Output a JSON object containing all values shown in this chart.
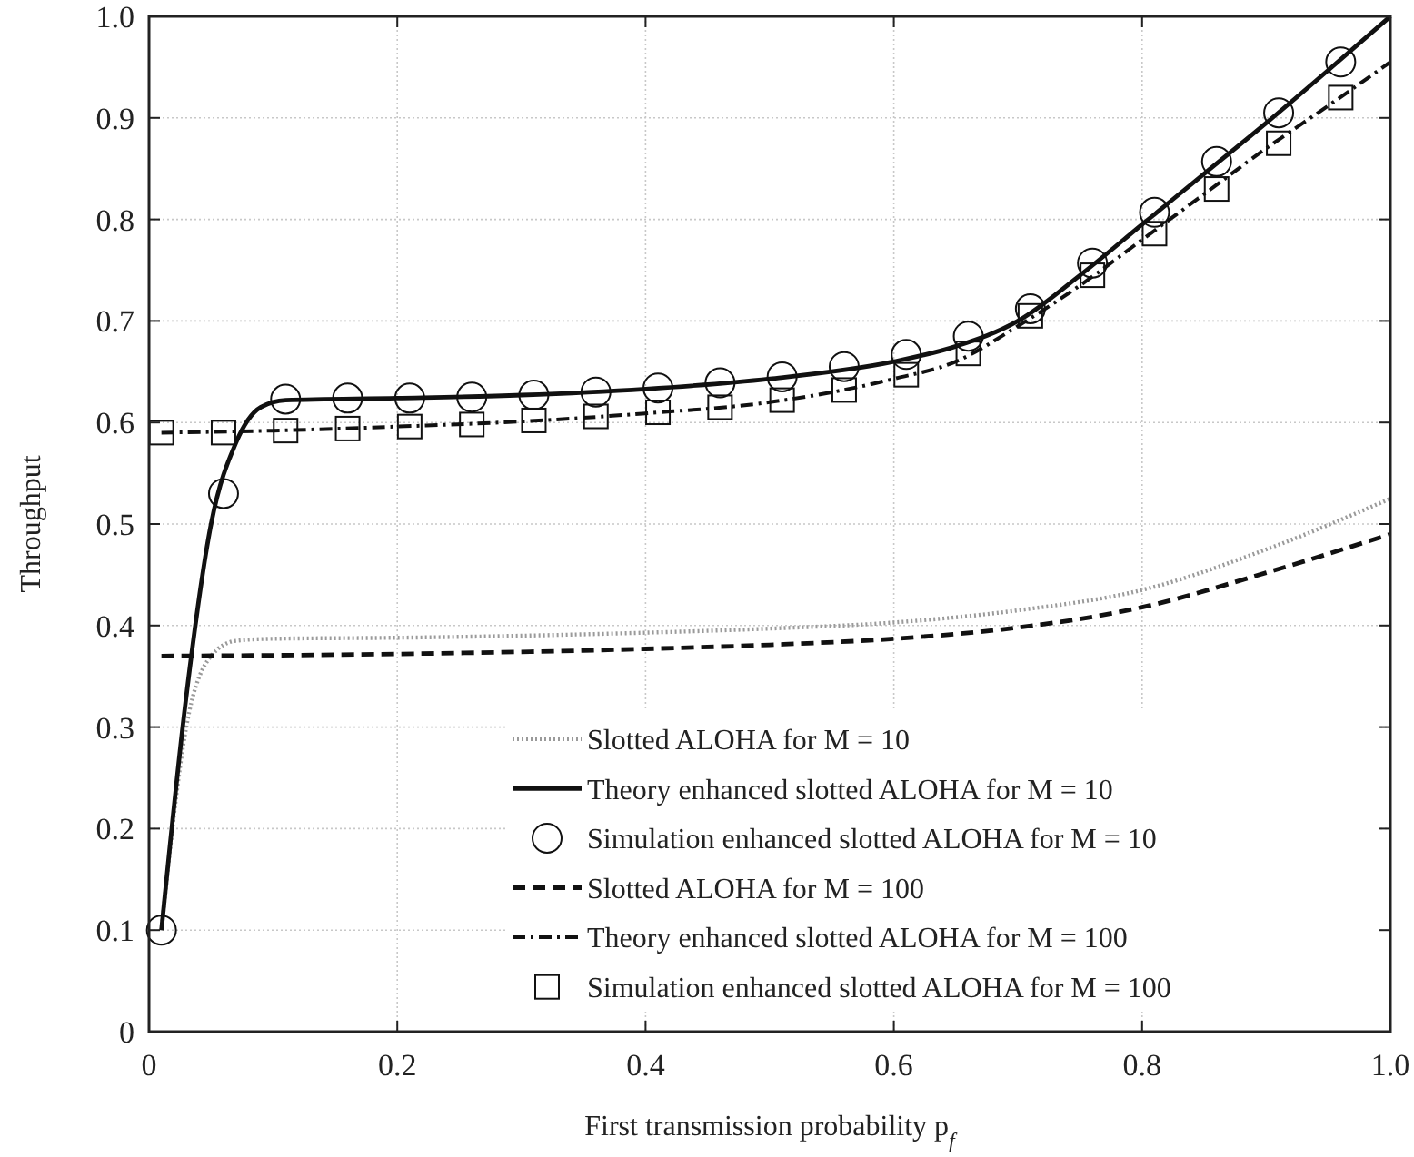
{
  "chart_data": {
    "type": "line",
    "xlabel": "First transmission probability p$_{f}$",
    "ylabel": "Throughput",
    "xlim": [
      0,
      1
    ],
    "ylim": [
      0,
      1
    ],
    "xticks": [
      0,
      0.2,
      0.4,
      0.6,
      0.8,
      {
        "value": 1,
        "label": "1.0"
      }
    ],
    "yticks": [
      0,
      0.1,
      0.2,
      0.3,
      0.4,
      0.5,
      0.6,
      0.7,
      0.8,
      0.9,
      {
        "value": 1,
        "label": "1.0"
      }
    ],
    "grid": true,
    "legend": "bottom right",
    "series": [
      {
        "name": "Slotted ALOHA for M = 10",
        "color": "#9a9a9a",
        "line_style": "dotted",
        "marker": "none",
        "x": [
          0.01,
          0.03,
          0.05,
          0.07,
          0.1,
          0.2,
          0.3,
          0.4,
          0.5,
          0.6,
          0.7,
          0.8,
          0.9,
          1.0
        ],
        "values": [
          0.1,
          0.3,
          0.37,
          0.385,
          0.387,
          0.388,
          0.39,
          0.393,
          0.397,
          0.403,
          0.415,
          0.435,
          0.475,
          0.525
        ]
      },
      {
        "name": "Theory enhanced slotted ALOHA for M = 10",
        "color": "#111111",
        "line_style": "solid",
        "marker": "none",
        "x": [
          0.01,
          0.03,
          0.05,
          0.07,
          0.09,
          0.11,
          0.2,
          0.3,
          0.4,
          0.5,
          0.6,
          0.65,
          0.7,
          0.75,
          0.8,
          0.85,
          0.9,
          0.95,
          1.0
        ],
        "values": [
          0.1,
          0.33,
          0.5,
          0.58,
          0.615,
          0.622,
          0.624,
          0.627,
          0.633,
          0.643,
          0.66,
          0.675,
          0.7,
          0.745,
          0.795,
          0.845,
          0.895,
          0.947,
          1.0
        ]
      },
      {
        "name": "Simulation enhanced slotted ALOHA for M = 10",
        "type": "scatter",
        "color": "#111111",
        "marker": "circle",
        "x": [
          0.01,
          0.06,
          0.11,
          0.16,
          0.21,
          0.26,
          0.31,
          0.36,
          0.41,
          0.46,
          0.51,
          0.56,
          0.61,
          0.66,
          0.71,
          0.76,
          0.81,
          0.86,
          0.91,
          0.96
        ],
        "values": [
          0.1,
          0.53,
          0.623,
          0.624,
          0.624,
          0.625,
          0.627,
          0.63,
          0.634,
          0.639,
          0.645,
          0.655,
          0.667,
          0.685,
          0.712,
          0.757,
          0.807,
          0.857,
          0.905,
          0.955
        ]
      },
      {
        "name": "Slotted ALOHA for M = 100",
        "color": "#111111",
        "line_style": "dashed",
        "marker": "none",
        "x": [
          0.01,
          0.2,
          0.4,
          0.5,
          0.6,
          0.7,
          0.8,
          0.9,
          1.0
        ],
        "values": [
          0.37,
          0.372,
          0.377,
          0.381,
          0.387,
          0.398,
          0.418,
          0.452,
          0.49
        ]
      },
      {
        "name": "Theory enhanced slotted ALOHA for M = 100",
        "color": "#111111",
        "line_style": "dashdot",
        "marker": "none",
        "x": [
          0.01,
          0.1,
          0.2,
          0.3,
          0.4,
          0.5,
          0.6,
          0.65,
          0.7,
          0.75,
          0.8,
          0.85,
          0.9,
          0.95,
          1.0
        ],
        "values": [
          0.59,
          0.592,
          0.596,
          0.601,
          0.609,
          0.62,
          0.643,
          0.66,
          0.695,
          0.735,
          0.78,
          0.825,
          0.87,
          0.912,
          0.955
        ]
      },
      {
        "name": "Simulation enhanced slotted ALOHA for M = 100",
        "type": "scatter",
        "color": "#111111",
        "marker": "square",
        "x": [
          0.01,
          0.06,
          0.11,
          0.16,
          0.21,
          0.26,
          0.31,
          0.36,
          0.41,
          0.46,
          0.51,
          0.56,
          0.61,
          0.66,
          0.71,
          0.76,
          0.81,
          0.86,
          0.91,
          0.96
        ],
        "values": [
          0.59,
          0.59,
          0.592,
          0.594,
          0.596,
          0.598,
          0.602,
          0.606,
          0.61,
          0.615,
          0.622,
          0.632,
          0.647,
          0.668,
          0.705,
          0.745,
          0.786,
          0.83,
          0.875,
          0.92
        ]
      }
    ]
  }
}
